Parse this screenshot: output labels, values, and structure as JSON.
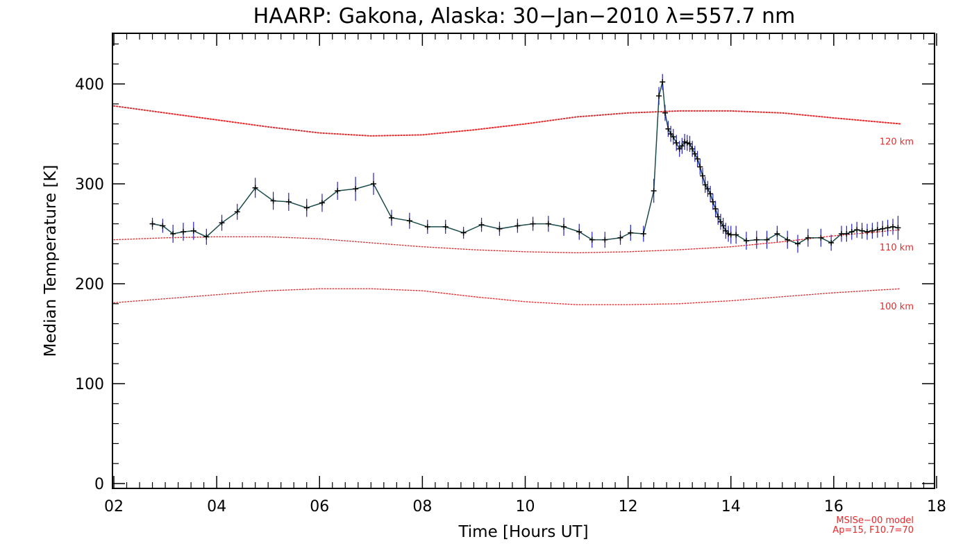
{
  "chart_data": {
    "type": "line",
    "title": "HAARP: Gakona,  Alaska: 30−Jan−2010 λ=557.7 nm",
    "xlabel": "Time [Hours UT]",
    "ylabel": "Median Temperature [K]",
    "xlim": [
      2,
      18
    ],
    "ylim": [
      0,
      450
    ],
    "x_ticks": [
      2,
      4,
      6,
      8,
      10,
      12,
      14,
      16,
      18
    ],
    "x_tick_labels": [
      "02",
      "04",
      "06",
      "08",
      "10",
      "12",
      "14",
      "16",
      "18"
    ],
    "y_ticks": [
      0,
      100,
      200,
      300,
      400
    ],
    "y_tick_labels": [
      "0",
      "100",
      "200",
      "300",
      "400"
    ],
    "grid": false,
    "measured_color": "#000000",
    "errorbar_color": "#2020c8",
    "line_color": "#1a4a4a",
    "series": [
      {
        "style": "points-with-error-bars",
        "x": [
          2.75,
          2.95,
          3.15,
          3.35,
          3.55,
          3.8,
          4.1,
          4.4,
          4.75,
          5.1,
          5.4,
          5.75,
          6.05,
          6.35,
          6.7,
          7.05,
          7.4,
          7.75,
          8.1,
          8.45,
          8.8,
          9.15,
          9.5,
          9.85,
          10.15,
          10.45,
          10.75,
          11.05,
          11.3,
          11.55,
          11.85,
          12.05,
          12.3,
          12.5,
          12.6,
          12.67,
          12.72,
          12.78,
          12.83,
          12.88,
          12.94,
          13.0,
          13.05,
          13.1,
          13.15,
          13.2,
          13.25,
          13.3,
          13.35,
          13.4,
          13.45,
          13.5,
          13.55,
          13.6,
          13.65,
          13.7,
          13.75,
          13.8,
          13.85,
          13.9,
          13.95,
          14.0,
          14.1,
          14.3,
          14.5,
          14.7,
          14.9,
          15.1,
          15.3,
          15.5,
          15.75,
          15.95,
          16.15,
          16.25,
          16.35,
          16.45,
          16.55,
          16.65,
          16.75,
          16.85,
          16.95,
          17.05,
          17.15,
          17.25
        ],
        "y": [
          260,
          258,
          250,
          252,
          253,
          247,
          261,
          272,
          296,
          283,
          282,
          276,
          281,
          293,
          295,
          300,
          266,
          263,
          257,
          257,
          251,
          259,
          255,
          258,
          260,
          260,
          257,
          252,
          244,
          244,
          246,
          251,
          250,
          293,
          388,
          402,
          371,
          355,
          350,
          347,
          341,
          335,
          338,
          342,
          341,
          340,
          335,
          330,
          325,
          317,
          308,
          299,
          295,
          290,
          282,
          275,
          267,
          262,
          258,
          253,
          250,
          249,
          249,
          243,
          244,
          244,
          250,
          244,
          240,
          246,
          246,
          241,
          250,
          250,
          252,
          254,
          253,
          252,
          253,
          254,
          255,
          256,
          257,
          256
        ],
        "yerr": [
          6,
          7,
          9,
          9,
          9,
          8,
          8,
          8,
          10,
          9,
          9,
          9,
          9,
          9,
          12,
          11,
          8,
          8,
          7,
          7,
          6,
          7,
          7,
          7,
          7,
          8,
          9,
          8,
          8,
          8,
          7,
          8,
          8,
          12,
          9,
          8,
          8,
          8,
          8,
          8,
          8,
          8,
          8,
          8,
          8,
          8,
          8,
          8,
          8,
          8,
          8,
          8,
          8,
          8,
          8,
          8,
          8,
          8,
          8,
          8,
          8,
          9,
          9,
          9,
          9,
          9,
          8,
          9,
          9,
          9,
          9,
          8,
          8,
          8,
          8,
          8,
          8,
          8,
          8,
          8,
          8,
          8,
          8,
          12
        ]
      },
      {
        "name": "120 km",
        "color": "#e8282a",
        "style": "dotted",
        "x": [
          2.0,
          3.0,
          4.0,
          5.0,
          6.0,
          7.0,
          8.0,
          9.0,
          10.0,
          11.0,
          12.0,
          13.0,
          14.0,
          15.0,
          16.0,
          17.3
        ],
        "y": [
          378,
          371,
          364,
          357,
          351,
          348,
          349,
          354,
          360,
          367,
          371,
          373,
          373,
          371,
          366,
          360
        ]
      },
      {
        "name": "110 km",
        "color": "#e8282a",
        "style": "dotted",
        "x": [
          2.0,
          3.0,
          4.0,
          5.0,
          6.0,
          7.0,
          8.0,
          9.0,
          10.0,
          11.0,
          12.0,
          13.0,
          14.0,
          15.0,
          16.0,
          17.3
        ],
        "y": [
          244,
          246,
          247,
          247,
          245,
          241,
          237,
          234,
          232,
          231,
          232,
          234,
          237,
          242,
          248,
          254
        ]
      },
      {
        "name": "100 km",
        "color": "#e8282a",
        "style": "dotted",
        "x": [
          2.0,
          3.0,
          4.0,
          5.0,
          6.0,
          7.0,
          8.0,
          9.0,
          10.0,
          11.0,
          12.0,
          13.0,
          14.0,
          15.0,
          16.0,
          17.3
        ],
        "y": [
          181,
          185,
          189,
          193,
          195,
          195,
          193,
          187,
          182,
          179,
          179,
          180,
          183,
          187,
          191,
          195
        ]
      }
    ],
    "annotations": [
      "MSISe−00 model",
      "Ap=15, F10.7=70"
    ]
  }
}
